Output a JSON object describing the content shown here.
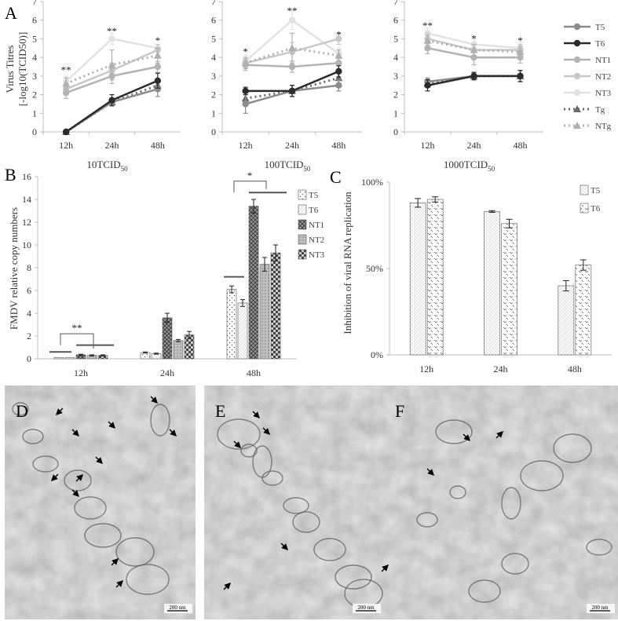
{
  "chart_data": [
    {
      "id": "A1",
      "type": "line",
      "panel_label": "A",
      "ylabel_line1": "Virus Titres",
      "ylabel_line2": "[-log10(TCID50)]",
      "xlabel": "10TCID",
      "xlabel_sub": "50",
      "categories": [
        "12h",
        "24h",
        "48h"
      ],
      "ylim": [
        0,
        7
      ],
      "yticks": [
        "0",
        "1",
        "2",
        "3",
        "4",
        "5",
        "6",
        "7"
      ],
      "series": [
        {
          "name": "T5",
          "values": [
            0,
            1.6,
            2.3
          ],
          "err": [
            0,
            0.2,
            0.4
          ]
        },
        {
          "name": "T6",
          "values": [
            0,
            1.7,
            2.75
          ],
          "err": [
            0,
            0.3,
            0.4
          ]
        },
        {
          "name": "NT1",
          "values": [
            2.1,
            3.0,
            3.5
          ],
          "err": [
            0.3,
            0.4,
            0.3
          ]
        },
        {
          "name": "NT2",
          "values": [
            2.3,
            3.3,
            4.4
          ],
          "err": [
            0.3,
            0.4,
            0.3
          ]
        },
        {
          "name": "NT3",
          "values": [
            2.7,
            5.0,
            4.5
          ],
          "err": [
            0.3,
            0.3,
            0.2
          ]
        },
        {
          "name": "Tg",
          "values": [
            0,
            1.6,
            2.5
          ],
          "err": [
            0,
            0.2,
            0.3
          ]
        },
        {
          "name": "NTg",
          "values": [
            2.6,
            3.6,
            4.1
          ],
          "err": [
            0.3,
            0.8,
            0.4
          ]
        }
      ],
      "annotations": [
        {
          "cat": 0,
          "text": "**",
          "y": 3.3
        },
        {
          "cat": 1,
          "text": "**",
          "y": 5.4
        },
        {
          "cat": 2,
          "text": "*",
          "y": 4.9
        }
      ]
    },
    {
      "id": "A2",
      "type": "line",
      "xlabel": "100TCID",
      "xlabel_sub": "50",
      "categories": [
        "12h",
        "24h",
        "48h"
      ],
      "ylim": [
        0,
        7
      ],
      "yticks": [
        "0",
        "1",
        "2",
        "3",
        "4",
        "5",
        "6",
        "7"
      ],
      "series": [
        {
          "name": "T5",
          "values": [
            1.5,
            2.2,
            2.5
          ],
          "err": [
            0.5,
            0.3,
            0.3
          ]
        },
        {
          "name": "T6",
          "values": [
            2.2,
            2.2,
            3.25
          ],
          "err": [
            0.2,
            0.3,
            0.3
          ]
        },
        {
          "name": "NT1",
          "values": [
            3.6,
            3.5,
            3.7
          ],
          "err": [
            0.3,
            0.3,
            0.3
          ]
        },
        {
          "name": "NT2",
          "values": [
            3.7,
            4.3,
            5.0
          ],
          "err": [
            0.3,
            0.5,
            0.3
          ]
        },
        {
          "name": "NT3",
          "values": [
            3.8,
            6.0,
            4.2
          ],
          "err": [
            0.3,
            0.5,
            0.3
          ]
        },
        {
          "name": "Tg",
          "values": [
            1.8,
            2.2,
            2.9
          ],
          "err": [
            0.3,
            0.3,
            0.3
          ]
        },
        {
          "name": "NTg",
          "values": [
            3.7,
            4.5,
            4.1
          ],
          "err": [
            0.3,
            0.8,
            0.3
          ]
        }
      ],
      "annotations": [
        {
          "cat": 0,
          "text": "*",
          "y": 4.3
        },
        {
          "cat": 1,
          "text": "**",
          "y": 6.5
        },
        {
          "cat": 2,
          "text": "*",
          "y": 5.2
        }
      ]
    },
    {
      "id": "A3",
      "type": "line",
      "xlabel": "1000TCID",
      "xlabel_sub": "50",
      "categories": [
        "12h",
        "24h",
        "48h"
      ],
      "ylim": [
        0,
        7
      ],
      "yticks": [
        "0",
        "1",
        "2",
        "3",
        "4",
        "5",
        "6",
        "7"
      ],
      "series": [
        {
          "name": "T5",
          "values": [
            2.7,
            3.0,
            3.0
          ],
          "err": [
            0.2,
            0.2,
            0.3
          ]
        },
        {
          "name": "T6",
          "values": [
            2.5,
            3.0,
            3.0
          ],
          "err": [
            0.3,
            0.2,
            0.3
          ]
        },
        {
          "name": "NT1",
          "values": [
            4.5,
            4.0,
            4.0
          ],
          "err": [
            0.3,
            0.4,
            0.3
          ]
        },
        {
          "name": "NT2",
          "values": [
            5.0,
            4.4,
            4.4
          ],
          "err": [
            0.3,
            0.3,
            0.3
          ]
        },
        {
          "name": "NT3",
          "values": [
            5.3,
            4.7,
            4.5
          ],
          "err": [
            0.3,
            0.3,
            0.3
          ]
        },
        {
          "name": "Tg",
          "values": [
            2.6,
            3.0,
            3.0
          ],
          "err": [
            0.2,
            0.2,
            0.3
          ]
        },
        {
          "name": "NTg",
          "values": [
            4.9,
            4.4,
            4.3
          ],
          "err": [
            0.3,
            0.3,
            0.3
          ]
        }
      ],
      "annotations": [
        {
          "cat": 0,
          "text": "**",
          "y": 5.7
        },
        {
          "cat": 1,
          "text": "*",
          "y": 5.0
        },
        {
          "cat": 2,
          "text": "*",
          "y": 4.9
        }
      ]
    },
    {
      "id": "B",
      "type": "bar",
      "panel_label": "B",
      "ylabel": "FMDV relative copy numbers",
      "categories": [
        "12h",
        "24h",
        "48h"
      ],
      "ylim": [
        0,
        16
      ],
      "yticks": [
        "0",
        "2",
        "4",
        "6",
        "8",
        "10",
        "12",
        "14",
        "16"
      ],
      "series": [
        {
          "name": "T5",
          "values": [
            0.1,
            0.55,
            6.1
          ],
          "err": [
            0,
            0.05,
            0.3
          ]
        },
        {
          "name": "T6",
          "values": [
            0.1,
            0.45,
            4.9
          ],
          "err": [
            0,
            0.05,
            0.3
          ]
        },
        {
          "name": "NT1",
          "values": [
            0.35,
            3.6,
            13.4
          ],
          "err": [
            0.05,
            0.4,
            0.6
          ]
        },
        {
          "name": "NT2",
          "values": [
            0.3,
            1.6,
            8.3
          ],
          "err": [
            0.05,
            0.1,
            0.6
          ]
        },
        {
          "name": "NT3",
          "values": [
            0.3,
            2.1,
            9.3
          ],
          "err": [
            0.05,
            0.3,
            0.7
          ]
        }
      ],
      "annotations": [
        {
          "cat": 0,
          "text": "**"
        },
        {
          "cat": 2,
          "text": "*"
        }
      ]
    },
    {
      "id": "C",
      "type": "bar",
      "panel_label": "C",
      "ylabel": "Inhibition of viral RNA replication",
      "categories": [
        "12h",
        "24h",
        "48h"
      ],
      "ylim": [
        0,
        100
      ],
      "yticks": [
        "0%",
        "50%",
        "100%"
      ],
      "series": [
        {
          "name": "T5",
          "values": [
            88,
            83,
            40
          ],
          "err": [
            2.5,
            0.5,
            3
          ]
        },
        {
          "name": "T6",
          "values": [
            90,
            76,
            52
          ],
          "err": [
            1.5,
            2.5,
            3
          ]
        }
      ]
    }
  ],
  "micrographs": [
    {
      "label": "D",
      "scale": "200 nm"
    },
    {
      "label": "E",
      "scale": "200 nm"
    },
    {
      "label": "F",
      "scale": "200 nm"
    }
  ],
  "colors": {
    "T5": "#8c8c8c",
    "T6": "#2b2b2b",
    "NT1": "#b3b3b3",
    "NT2": "#c8c8c8",
    "NT3": "#e2e2e2",
    "Tg": "#6a6a6a",
    "NTg": "#b0b0b0",
    "axis": "#bdbdbd"
  }
}
